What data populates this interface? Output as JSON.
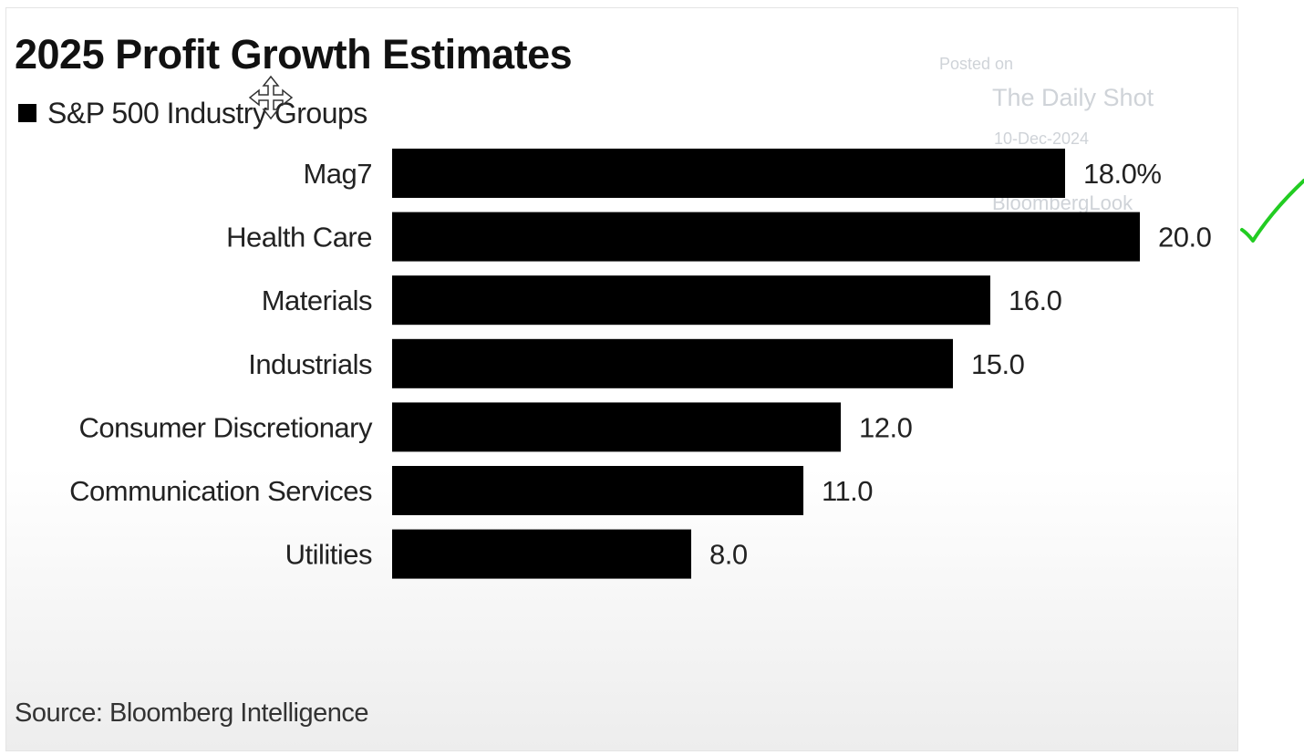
{
  "watermark": {
    "line1": "Posted on",
    "line2": "The Daily Shot",
    "line3": "10-Dec-2024",
    "line4": "BloombergLook"
  },
  "source": "Source: Bloomberg Intelligence",
  "colors": {
    "bar": "#000000",
    "text": "#222222",
    "watermark": "#cfd3d8",
    "checkmark": "#22cc22"
  },
  "icons": {
    "cursor": "move-cursor-icon",
    "annotation": "checkmark-icon"
  },
  "chart_data": {
    "type": "bar",
    "orientation": "horizontal",
    "title": "2025 Profit Growth Estimates",
    "legend": [
      "S&P 500 Industry Groups"
    ],
    "categories": [
      "Mag7",
      "Health Care",
      "Materials",
      "Industrials",
      "Consumer Discretionary",
      "Communication Services",
      "Utilities"
    ],
    "values": [
      18.0,
      20.0,
      16.0,
      15.0,
      12.0,
      11.0,
      8.0
    ],
    "value_labels": [
      "18.0%",
      "20.0",
      "16.0",
      "15.0",
      "12.0",
      "11.0",
      "8.0"
    ],
    "xlim": [
      0,
      20
    ],
    "grid": false,
    "legend_position": "top-left"
  }
}
